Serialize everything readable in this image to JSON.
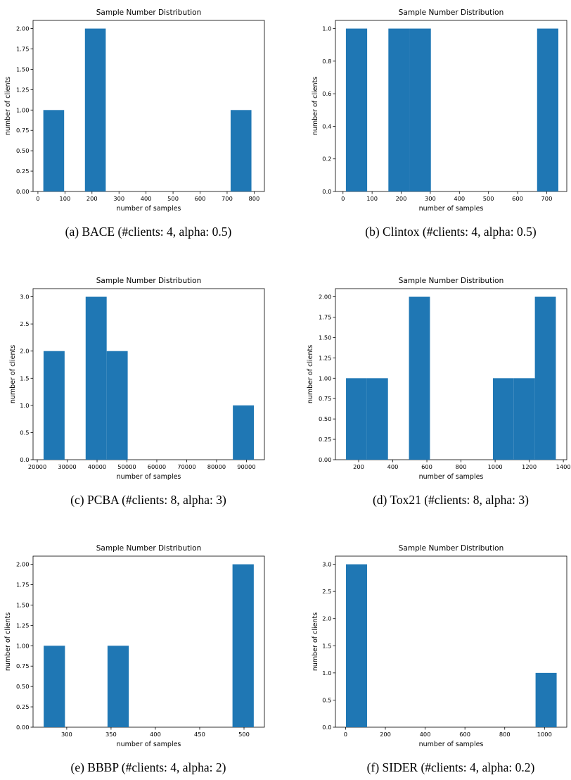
{
  "figures": [
    {
      "caption": "(a)  BACE (#clients: 4, alpha: 0.5)",
      "chart_data": {
        "type": "bar",
        "title": "Sample Number Distribution",
        "xlabel": "number of samples",
        "ylabel": "number of clients",
        "xlim": [
          -18,
          838
        ],
        "ylim": [
          0,
          2.1
        ],
        "xticks": [
          0,
          100,
          200,
          300,
          400,
          500,
          600,
          700,
          800
        ],
        "yticks": [
          0.0,
          0.25,
          0.5,
          0.75,
          1.0,
          1.25,
          1.5,
          1.75,
          2.0
        ],
        "ytick_labels": [
          "0.00",
          "0.25",
          "0.50",
          "0.75",
          "1.00",
          "1.25",
          "1.50",
          "1.75",
          "2.00"
        ],
        "bars": [
          {
            "x0": 20,
            "x1": 97,
            "value": 1
          },
          {
            "x0": 174,
            "x1": 251,
            "value": 2
          },
          {
            "x0": 713,
            "x1": 790,
            "value": 1
          }
        ],
        "color": "#1f77b4"
      }
    },
    {
      "caption": "(b)  Clintox (#clients: 4, alpha: 0.5)",
      "chart_data": {
        "type": "bar",
        "title": "Sample Number Distribution",
        "xlabel": "number of samples",
        "ylabel": "number of clients",
        "xlim": [
          -26,
          769
        ],
        "ylim": [
          0,
          1.05
        ],
        "xticks": [
          0,
          100,
          200,
          300,
          400,
          500,
          600,
          700
        ],
        "yticks": [
          0.0,
          0.2,
          0.4,
          0.6,
          0.8,
          1.0
        ],
        "ytick_labels": [
          "0.0",
          "0.2",
          "0.4",
          "0.6",
          "0.8",
          "1.0"
        ],
        "bars": [
          {
            "x0": 10,
            "x1": 83,
            "value": 1
          },
          {
            "x0": 156,
            "x1": 229,
            "value": 1
          },
          {
            "x0": 229,
            "x1": 302,
            "value": 1
          },
          {
            "x0": 667,
            "x1": 740,
            "value": 1
          }
        ],
        "color": "#1f77b4"
      }
    },
    {
      "caption": "(c)  PCBA (#clients: 8, alpha: 3)",
      "chart_data": {
        "type": "bar",
        "title": "Sample Number Distribution",
        "xlabel": "number of samples",
        "ylabel": "number of clients",
        "xlim": [
          18580,
          96020
        ],
        "ylim": [
          0,
          3.15
        ],
        "xticks": [
          20000,
          30000,
          40000,
          50000,
          60000,
          70000,
          80000,
          90000
        ],
        "yticks": [
          0.0,
          0.5,
          1.0,
          1.5,
          2.0,
          2.5,
          3.0
        ],
        "ytick_labels": [
          "0.0",
          "0.5",
          "1.0",
          "1.5",
          "2.0",
          "2.5",
          "3.0"
        ],
        "bars": [
          {
            "x0": 22100,
            "x1": 29140,
            "value": 2
          },
          {
            "x0": 36180,
            "x1": 43220,
            "value": 3
          },
          {
            "x0": 43220,
            "x1": 50260,
            "value": 2
          },
          {
            "x0": 85460,
            "x1": 92500,
            "value": 1
          }
        ],
        "color": "#1f77b4"
      }
    },
    {
      "caption": "(d)  Tox21 (#clients: 8, alpha: 3)",
      "chart_data": {
        "type": "bar",
        "title": "Sample Number Distribution",
        "xlabel": "number of samples",
        "ylabel": "number of clients",
        "xlim": [
          64,
          1420
        ],
        "ylim": [
          0,
          2.1
        ],
        "xticks": [
          200,
          400,
          600,
          800,
          1000,
          1200,
          1400
        ],
        "yticks": [
          0.0,
          0.25,
          0.5,
          0.75,
          1.0,
          1.25,
          1.5,
          1.75,
          2.0
        ],
        "ytick_labels": [
          "0.00",
          "0.25",
          "0.50",
          "0.75",
          "1.00",
          "1.25",
          "1.50",
          "1.75",
          "2.00"
        ],
        "bars": [
          {
            "x0": 126,
            "x1": 249,
            "value": 1
          },
          {
            "x0": 249,
            "x1": 372,
            "value": 1
          },
          {
            "x0": 495,
            "x1": 618,
            "value": 2
          },
          {
            "x0": 987,
            "x1": 1110,
            "value": 1
          },
          {
            "x0": 1110,
            "x1": 1233,
            "value": 1
          },
          {
            "x0": 1233,
            "x1": 1356,
            "value": 2
          }
        ],
        "color": "#1f77b4"
      }
    },
    {
      "caption": "(e)  BBBP (#clients: 4, alpha: 2)",
      "chart_data": {
        "type": "bar",
        "title": "Sample Number Distribution",
        "xlabel": "number of samples",
        "ylabel": "number of clients",
        "xlim": [
          262,
          523
        ],
        "ylim": [
          0,
          2.1
        ],
        "xticks": [
          300,
          350,
          400,
          450,
          500
        ],
        "yticks": [
          0.0,
          0.25,
          0.5,
          0.75,
          1.0,
          1.25,
          1.5,
          1.75,
          2.0
        ],
        "ytick_labels": [
          "0.00",
          "0.25",
          "0.50",
          "0.75",
          "1.00",
          "1.25",
          "1.50",
          "1.75",
          "2.00"
        ],
        "bars": [
          {
            "x0": 274,
            "x1": 298,
            "value": 1
          },
          {
            "x0": 346,
            "x1": 370,
            "value": 1
          },
          {
            "x0": 487,
            "x1": 511,
            "value": 2
          }
        ],
        "color": "#1f77b4"
      }
    },
    {
      "caption": "(f)  SIDER (#clients: 4, alpha: 0.2)",
      "chart_data": {
        "type": "bar",
        "title": "Sample Number Distribution",
        "xlabel": "number of samples",
        "ylabel": "number of clients",
        "xlim": [
          -51,
          1112
        ],
        "ylim": [
          0,
          3.15
        ],
        "xticks": [
          0,
          200,
          400,
          600,
          800,
          1000
        ],
        "yticks": [
          0.0,
          0.5,
          1.0,
          1.5,
          2.0,
          2.5,
          3.0
        ],
        "ytick_labels": [
          "0.0",
          "0.5",
          "1.0",
          "1.5",
          "2.0",
          "2.5",
          "3.0"
        ],
        "bars": [
          {
            "x0": 2,
            "x1": 108,
            "value": 3
          },
          {
            "x0": 955,
            "x1": 1061,
            "value": 1
          }
        ],
        "color": "#1f77b4"
      }
    }
  ]
}
